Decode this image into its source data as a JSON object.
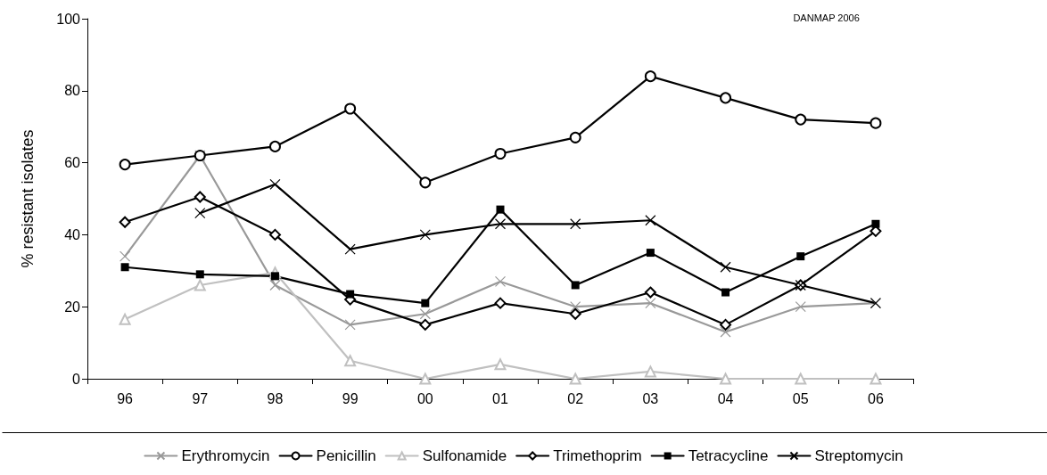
{
  "chart_data": {
    "type": "line",
    "ylabel": "% resistant isolates",
    "annotations": [
      "DANMAP 2006"
    ],
    "categories": [
      "96",
      "97",
      "98",
      "99",
      "00",
      "01",
      "02",
      "03",
      "04",
      "05",
      "06"
    ],
    "ylim": [
      0,
      100
    ],
    "yticks": [
      0,
      20,
      40,
      60,
      80,
      100
    ],
    "grid": false,
    "legend": "bottom",
    "line_style": "solid",
    "series": [
      {
        "name": "Erythromycin",
        "color": "#999999",
        "marker": "cross",
        "values": [
          34,
          62,
          26,
          15,
          18,
          27,
          20,
          21,
          13,
          20,
          21
        ]
      },
      {
        "name": "Penicillin",
        "color": "#000000",
        "marker": "circle",
        "values": [
          59.5,
          62,
          64.5,
          75,
          54.5,
          62.5,
          67,
          84,
          78,
          72,
          71
        ]
      },
      {
        "name": "Sulfonamide",
        "color": "#c0c0c0",
        "marker": "triangle",
        "values": [
          16.5,
          26,
          29.5,
          5,
          0,
          4,
          0,
          2,
          0,
          0,
          0
        ]
      },
      {
        "name": "Trimethoprim",
        "color": "#000000",
        "marker": "diamond",
        "values": [
          43.5,
          50.5,
          40,
          22,
          15,
          21,
          18,
          24,
          15,
          26,
          41
        ]
      },
      {
        "name": "Tetracycline",
        "color": "#000000",
        "marker": "square",
        "values": [
          31,
          29,
          28.5,
          23.5,
          21,
          47,
          26,
          35,
          24,
          34,
          43
        ]
      },
      {
        "name": "Streptomycin",
        "color": "#000000",
        "marker": "cross",
        "values": [
          null,
          46,
          54,
          36,
          40,
          43,
          43,
          44,
          31,
          26,
          21
        ]
      }
    ]
  }
}
